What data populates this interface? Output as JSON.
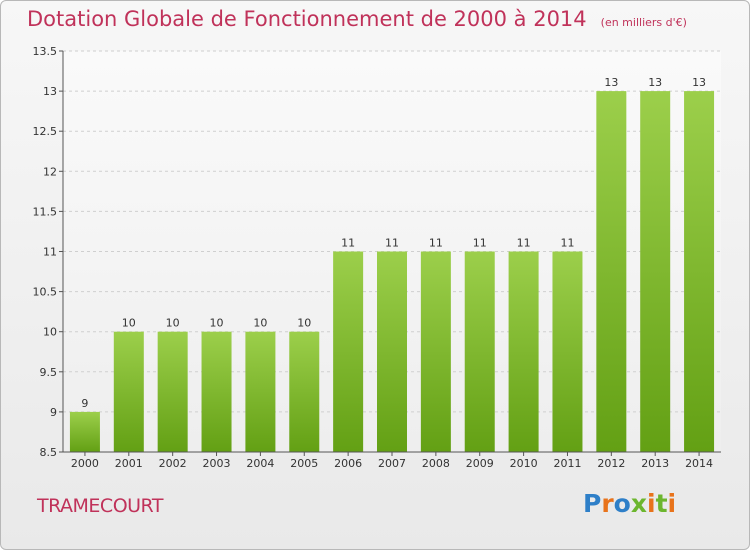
{
  "header": {
    "title": "Dotation Globale de Fonctionnement de 2000 à 2014",
    "unit": "(en milliers d'€)"
  },
  "footer": {
    "commune": "TRAMECOURT",
    "brand": "Proxiti"
  },
  "colors": {
    "title": "#c0325a",
    "bar_light": "#9ccf4b",
    "bar_dark": "#63a014",
    "grid": "#cfcfcf",
    "logo_letters": [
      "#2e7fc8",
      "#e8731b",
      "#2e7fc8",
      "#6cb62e",
      "#e8731b",
      "#6cb62e",
      "#e8731b"
    ]
  },
  "chart_data": {
    "type": "bar",
    "title": "Dotation Globale de Fonctionnement de 2000 à 2014",
    "subtitle": "(en milliers d'€)",
    "categories": [
      "2000",
      "2001",
      "2002",
      "2003",
      "2004",
      "2005",
      "2006",
      "2007",
      "2008",
      "2009",
      "2010",
      "2011",
      "2012",
      "2013",
      "2014"
    ],
    "values": [
      9,
      10,
      10,
      10,
      10,
      10,
      11,
      11,
      11,
      11,
      11,
      11,
      13,
      13,
      13
    ],
    "ylim": [
      8.5,
      13.5
    ],
    "yticks": [
      8.5,
      9,
      9.5,
      10,
      10.5,
      11,
      11.5,
      12,
      12.5,
      13,
      13.5
    ],
    "xlabel": "",
    "ylabel": "",
    "grid": "horizontal",
    "legend": "none"
  }
}
